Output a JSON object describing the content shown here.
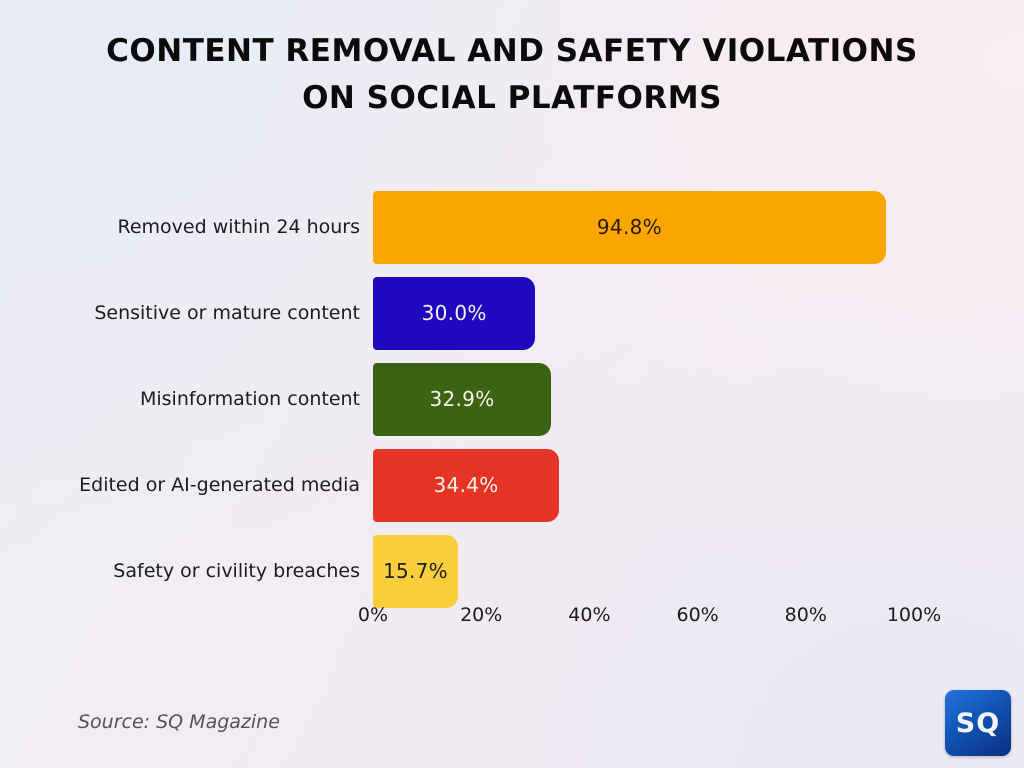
{
  "title": "CONTENT REMOVAL AND SAFETY VIOLATIONS ON SOCIAL PLATFORMS",
  "source": "Source: SQ Magazine",
  "logo": {
    "text": "SQ"
  },
  "colors": {
    "background_blue": "#e7ecf6",
    "background_pink": "#f9ecf2",
    "logo_blue": "#1254b4"
  },
  "chart_data": {
    "type": "bar",
    "orientation": "horizontal",
    "title": "CONTENT REMOVAL AND SAFETY VIOLATIONS ON SOCIAL PLATFORMS",
    "categories": [
      "Removed within 24 hours",
      "Sensitive or mature content",
      "Misinformation content",
      "Edited or AI-generated media",
      "Safety or civility breaches"
    ],
    "values": [
      94.8,
      30.0,
      32.9,
      34.4,
      15.7
    ],
    "value_labels": [
      "94.8%",
      "30.0%",
      "32.9%",
      "34.4%",
      "15.7%"
    ],
    "bar_colors": [
      "#f9a602",
      "#2008be",
      "#3a6413",
      "#e53425",
      "#f8ce3b"
    ],
    "value_label_colors": [
      "#2b1d03",
      "#f6f2e9",
      "#f6f2e9",
      "#f6f2e9",
      "#222222"
    ],
    "xlabel": "",
    "ylabel": "",
    "xlim": [
      0,
      100
    ],
    "x_ticks": [
      0,
      20,
      40,
      60,
      80,
      100
    ],
    "x_tick_labels": [
      "0%",
      "20%",
      "40%",
      "60%",
      "80%",
      "100%"
    ],
    "grid": false,
    "legend": false
  }
}
